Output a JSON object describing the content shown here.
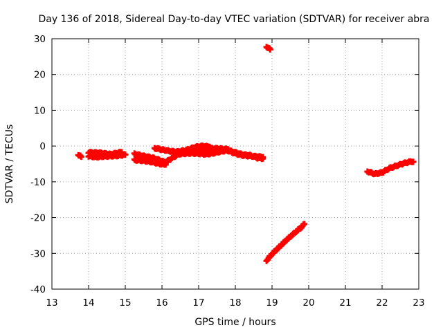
{
  "chart_data": {
    "type": "scatter",
    "title": "Day 136 of 2018, Sidereal Day-to-day VTEC variation (SDTVAR) for receiver abra",
    "xlabel": "GPS time / hours",
    "ylabel": "SDTVAR / TECUs",
    "xlim": [
      13,
      23
    ],
    "ylim": [
      -40,
      30
    ],
    "xticks": [
      13,
      14,
      15,
      16,
      17,
      18,
      19,
      20,
      21,
      22,
      23
    ],
    "yticks": [
      -40,
      -30,
      -20,
      -10,
      0,
      10,
      20,
      30
    ],
    "grid": true,
    "marker_color": "#ff0000",
    "series": [
      {
        "name": "SDTVAR",
        "segments": [
          [
            [
              13.72,
              -2.4
            ],
            [
              13.8,
              -3.0
            ]
          ],
          [
            [
              14.0,
              -2.8
            ],
            [
              14.2,
              -3.1
            ],
            [
              14.4,
              -2.9
            ],
            [
              14.6,
              -2.8
            ],
            [
              14.8,
              -2.7
            ],
            [
              15.0,
              -2.4
            ]
          ],
          [
            [
              14.0,
              -1.8
            ],
            [
              14.3,
              -1.9
            ],
            [
              14.6,
              -2.3
            ],
            [
              14.9,
              -1.7
            ]
          ],
          [
            [
              15.25,
              -2.2
            ],
            [
              15.5,
              -2.8
            ],
            [
              15.75,
              -3.3
            ],
            [
              15.95,
              -4.0
            ],
            [
              16.1,
              -4.6
            ]
          ],
          [
            [
              15.25,
              -3.9
            ],
            [
              15.5,
              -4.1
            ],
            [
              15.75,
              -4.5
            ],
            [
              15.95,
              -5.0
            ],
            [
              16.1,
              -5.2
            ]
          ],
          [
            [
              15.8,
              -0.6
            ],
            [
              16.0,
              -1.0
            ],
            [
              16.2,
              -1.4
            ],
            [
              16.4,
              -1.6
            ],
            [
              16.6,
              -1.3
            ],
            [
              16.8,
              -1.0
            ],
            [
              17.0,
              -0.6
            ],
            [
              17.2,
              -0.6
            ],
            [
              17.5,
              -0.7
            ],
            [
              17.8,
              -0.9
            ]
          ],
          [
            [
              16.1,
              -4.5
            ],
            [
              16.3,
              -3.2
            ],
            [
              16.5,
              -2.0
            ],
            [
              16.7,
              -1.0
            ],
            [
              16.9,
              -0.3
            ],
            [
              17.1,
              0.0
            ],
            [
              17.3,
              -0.2
            ]
          ],
          [
            [
              16.4,
              -2.3
            ],
            [
              16.6,
              -2.1
            ],
            [
              16.8,
              -2.0
            ],
            [
              17.0,
              -2.1
            ],
            [
              17.2,
              -2.3
            ],
            [
              17.4,
              -2.0
            ],
            [
              17.6,
              -1.5
            ],
            [
              17.8,
              -1.2
            ],
            [
              18.0,
              -1.8
            ],
            [
              18.2,
              -2.4
            ],
            [
              18.4,
              -2.6
            ],
            [
              18.6,
              -3.3
            ],
            [
              18.75,
              -3.5
            ]
          ],
          [
            [
              16.6,
              -1.6
            ],
            [
              16.8,
              -1.2
            ],
            [
              17.0,
              -1.4
            ],
            [
              17.2,
              -1.7
            ],
            [
              17.4,
              -1.4
            ],
            [
              17.6,
              -0.9
            ],
            [
              17.8,
              -1.3
            ],
            [
              18.0,
              -2.1
            ],
            [
              18.2,
              -2.6
            ],
            [
              18.4,
              -2.8
            ],
            [
              18.6,
              -2.9
            ],
            [
              18.75,
              -3.1
            ]
          ],
          [
            [
              18.85,
              27.8
            ],
            [
              18.95,
              27.0
            ]
          ],
          [
            [
              18.85,
              -32.0
            ],
            [
              19.0,
              -30.2
            ],
            [
              19.2,
              -28.2
            ],
            [
              19.4,
              -26.2
            ],
            [
              19.6,
              -24.4
            ],
            [
              19.8,
              -22.7
            ],
            [
              19.88,
              -21.8
            ]
          ],
          [
            [
              21.6,
              -7.1
            ],
            [
              21.8,
              -7.8
            ],
            [
              22.0,
              -7.4
            ],
            [
              22.2,
              -6.2
            ],
            [
              22.4,
              -5.5
            ],
            [
              22.6,
              -4.8
            ],
            [
              22.8,
              -4.3
            ],
            [
              22.85,
              -4.4
            ]
          ]
        ]
      }
    ]
  }
}
